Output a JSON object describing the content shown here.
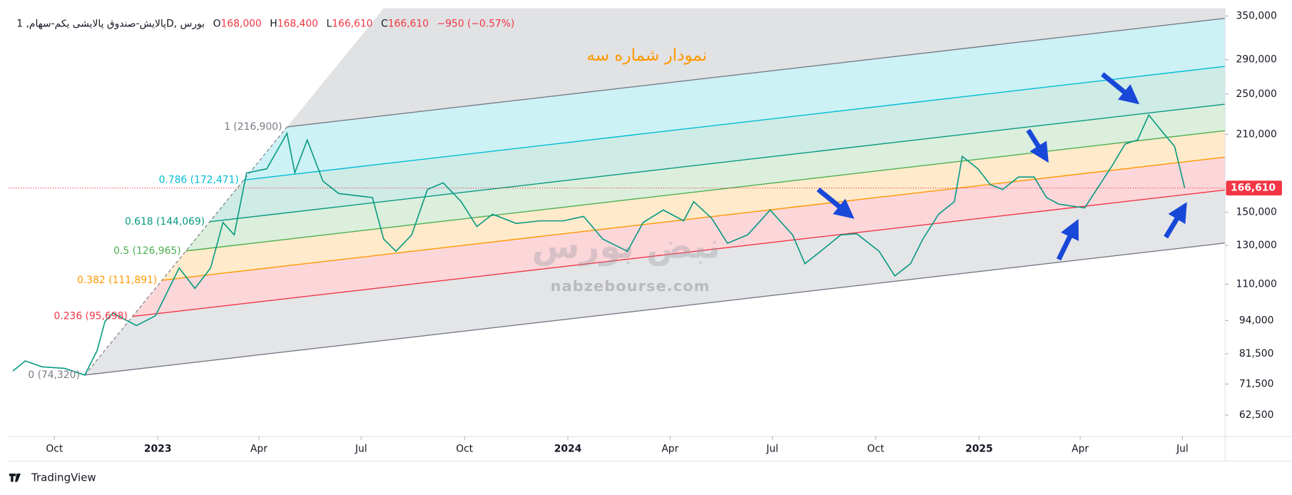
{
  "chart_data": {
    "type": "line",
    "header": {
      "symbol": "پالایش-صندوق پالایشی یکم-سهام, 1D, بورس",
      "ohlc": [
        {
          "key": "O",
          "value": 168000,
          "label": "168,000"
        },
        {
          "key": "H",
          "value": 168400,
          "label": "168,400"
        },
        {
          "key": "L",
          "value": 166610,
          "label": "166,610"
        },
        {
          "key": "C",
          "value": 166610,
          "label": "166,610"
        }
      ],
      "change": "−950 (−0.57%)"
    },
    "annotation": "نمودار شماره سه",
    "watermark": {
      "logo": "نبض بورس",
      "site": "nabzebourse.com"
    },
    "footer": "TradingView",
    "log_scale": true,
    "color": "#089981",
    "x": [
      "2022-08-25",
      "2022-09-05",
      "2022-09-20",
      "2022-10-10",
      "2022-10-28",
      "2022-11-08",
      "2022-11-15",
      "2022-11-22",
      "2022-12-13",
      "2022-12-30",
      "2023-01-20",
      "2023-02-03",
      "2023-02-17",
      "2023-02-28",
      "2023-03-10",
      "2023-03-21",
      "2023-04-08",
      "2023-04-26",
      "2023-05-03",
      "2023-05-14",
      "2023-05-28",
      "2023-06-11",
      "2023-07-11",
      "2023-07-21",
      "2023-08-01",
      "2023-08-15",
      "2023-08-29",
      "2023-09-12",
      "2023-09-28",
      "2023-10-12",
      "2023-10-26",
      "2023-11-16",
      "2023-12-07",
      "2023-12-28",
      "2024-01-15",
      "2024-02-01",
      "2024-02-23",
      "2024-03-08",
      "2024-03-26",
      "2024-04-13",
      "2024-04-22",
      "2024-05-08",
      "2024-05-22",
      "2024-06-09",
      "2024-06-29",
      "2024-07-19",
      "2024-07-30",
      "2024-08-13",
      "2024-08-31",
      "2024-09-14",
      "2024-10-04",
      "2024-10-18",
      "2024-11-01",
      "2024-11-12",
      "2024-11-26",
      "2024-12-10",
      "2024-12-17",
      "2024-12-31",
      "2025-01-11",
      "2025-01-22",
      "2025-02-05",
      "2025-02-19",
      "2025-03-02",
      "2025-03-13",
      "2025-04-05",
      "2025-04-30",
      "2025-05-11",
      "2025-05-22",
      "2025-06-01",
      "2025-06-13",
      "2025-06-24",
      "2025-07-03"
    ],
    "values": [
      75600,
      79000,
      77000,
      76500,
      74320,
      82600,
      93700,
      97100,
      92000,
      96000,
      118000,
      108000,
      118000,
      143600,
      136100,
      177800,
      181000,
      211000,
      178000,
      205000,
      171600,
      162700,
      159900,
      133700,
      126800,
      136100,
      165600,
      170400,
      157100,
      141100,
      148800,
      143000,
      144600,
      144600,
      147400,
      133700,
      126800,
      143600,
      151500,
      144600,
      157100,
      146200,
      131300,
      136100,
      151500,
      136100,
      120200,
      126800,
      136100,
      136800,
      126800,
      114000,
      120200,
      133700,
      148800,
      157100,
      191000,
      181000,
      169000,
      165600,
      174700,
      174700,
      159900,
      155400,
      152900,
      184300,
      201500,
      205000,
      228300,
      212500,
      199400,
      166610
    ],
    "xlim": [
      "2022-08-21",
      "2025-08-08"
    ],
    "xticks": [
      {
        "value": "2022-10-01",
        "label": "Oct"
      },
      {
        "value": "2023-01-01",
        "label": "2023"
      },
      {
        "value": "2023-04-01",
        "label": "Apr"
      },
      {
        "value": "2023-07-01",
        "label": "Jul"
      },
      {
        "value": "2023-10-01",
        "label": "Oct"
      },
      {
        "value": "2024-01-01",
        "label": "2024"
      },
      {
        "value": "2024-04-01",
        "label": "Apr"
      },
      {
        "value": "2024-07-01",
        "label": "Jul"
      },
      {
        "value": "2024-10-01",
        "label": "Oct"
      },
      {
        "value": "2025-01-01",
        "label": "2025"
      },
      {
        "value": "2025-04-01",
        "label": "Apr"
      },
      {
        "value": "2025-07-01",
        "label": "Jul"
      }
    ],
    "ylim": [
      57000,
      362000
    ],
    "yticks": [
      {
        "value": 350000,
        "label": "350,000"
      },
      {
        "value": 290000,
        "label": "290,000"
      },
      {
        "value": 250000,
        "label": "250,000"
      },
      {
        "value": 210000,
        "label": "210,000"
      },
      {
        "value": 150000,
        "label": "150,000"
      },
      {
        "value": 130000,
        "label": "130,000"
      },
      {
        "value": 110000,
        "label": "110,000"
      },
      {
        "value": 94000,
        "label": "94,000"
      },
      {
        "value": 81500,
        "label": "81,500"
      },
      {
        "value": 71500,
        "label": "71,500"
      },
      {
        "value": 62500,
        "label": "62,500"
      }
    ],
    "last_price": {
      "value": 166610,
      "label": "166,610",
      "color": "#f23645"
    },
    "fib": {
      "anchor_dates": [
        "2022-10-28",
        "2023-04-26"
      ],
      "channel_end": {
        "x": "2025-08-08",
        "value": 131400
      },
      "levels": [
        {
          "value": 74320,
          "label": "0 (74,320)",
          "color": "#787b86"
        },
        {
          "value": 95698,
          "label": "0.236 (95,698)",
          "color": "#f23645"
        },
        {
          "value": 111891,
          "label": "0.382 (111,891)",
          "color": "#ff9800"
        },
        {
          "value": 126965,
          "label": "0.5 (126,965)",
          "color": "#4caf50"
        },
        {
          "value": 144069,
          "label": "0.618 (144,069)",
          "color": "#089981"
        },
        {
          "value": 172471,
          "label": "0.786 (172,471)",
          "color": "#00bcd4"
        },
        {
          "value": 216900,
          "label": "1 (216,900)",
          "color": "#787b86"
        }
      ]
    }
  }
}
